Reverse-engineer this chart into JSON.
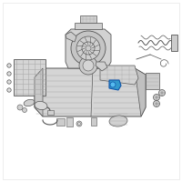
{
  "bg_color": "#ffffff",
  "dc": "#d8d8d8",
  "dc2": "#c8c8c8",
  "oc": "#777777",
  "dk": "#555555",
  "lc": "#aaaaaa",
  "hc": "#3399cc",
  "hc2": "#55bbee",
  "figsize": [
    2.0,
    2.0
  ],
  "dpi": 100
}
